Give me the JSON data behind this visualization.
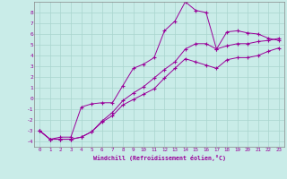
{
  "xlabel": "Windchill (Refroidissement éolien,°C)",
  "background_color": "#c9ece8",
  "grid_color": "#a8d4ce",
  "line_color": "#990099",
  "spine_color": "#888888",
  "xlim": [
    -0.5,
    23.5
  ],
  "ylim": [
    -4.5,
    9.0
  ],
  "xticks": [
    0,
    1,
    2,
    3,
    4,
    5,
    6,
    7,
    8,
    9,
    10,
    11,
    12,
    13,
    14,
    15,
    16,
    17,
    18,
    19,
    20,
    21,
    22,
    23
  ],
  "yticks": [
    -4,
    -3,
    -2,
    -1,
    0,
    1,
    2,
    3,
    4,
    5,
    6,
    7,
    8
  ],
  "line1_x": [
    0,
    1,
    2,
    3,
    4,
    5,
    6,
    7,
    8,
    9,
    10,
    11,
    12,
    13,
    14,
    15,
    16,
    17,
    18,
    19,
    20,
    21,
    22,
    23
  ],
  "line1_y": [
    -3.0,
    -3.8,
    -3.6,
    -3.6,
    -0.8,
    -0.5,
    -0.4,
    -0.4,
    1.2,
    2.8,
    3.2,
    3.8,
    6.3,
    7.2,
    9.0,
    8.2,
    8.0,
    4.6,
    6.2,
    6.3,
    6.1,
    6.0,
    5.6,
    5.4
  ],
  "line2_x": [
    0,
    1,
    2,
    3,
    4,
    5,
    6,
    7,
    8,
    9,
    10,
    11,
    12,
    13,
    14,
    15,
    16,
    17,
    18,
    19,
    20,
    21,
    22,
    23
  ],
  "line2_y": [
    -3.0,
    -3.8,
    -3.8,
    -3.8,
    -3.6,
    -3.1,
    -2.2,
    -1.6,
    -0.6,
    -0.1,
    0.4,
    0.9,
    1.9,
    2.8,
    3.7,
    3.4,
    3.1,
    2.8,
    3.6,
    3.8,
    3.8,
    4.0,
    4.4,
    4.7
  ],
  "line3_x": [
    0,
    1,
    2,
    3,
    4,
    5,
    6,
    7,
    8,
    9,
    10,
    11,
    12,
    13,
    14,
    15,
    16,
    17,
    18,
    19,
    20,
    21,
    22,
    23
  ],
  "line3_y": [
    -3.0,
    -3.8,
    -3.8,
    -3.8,
    -3.6,
    -3.1,
    -2.1,
    -1.3,
    -0.2,
    0.5,
    1.1,
    1.9,
    2.7,
    3.4,
    4.6,
    5.1,
    5.1,
    4.6,
    4.9,
    5.1,
    5.1,
    5.3,
    5.4,
    5.6
  ]
}
